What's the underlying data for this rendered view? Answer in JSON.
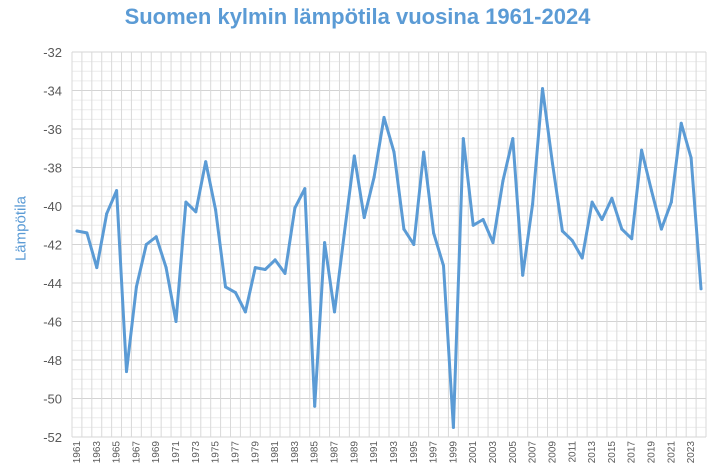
{
  "chart_data": {
    "type": "line",
    "title": "Suomen kylmin lämpötila vuosina 1961-2024",
    "xlabel": "",
    "ylabel": "Lämpötila",
    "ylim": [
      -52,
      -32
    ],
    "yticks": [
      -32,
      -34,
      -36,
      -38,
      -40,
      -42,
      -44,
      -46,
      -48,
      -50,
      -52
    ],
    "grid": true,
    "color": "#5b9bd5",
    "x": [
      1961,
      1962,
      1963,
      1964,
      1965,
      1966,
      1967,
      1968,
      1969,
      1970,
      1971,
      1972,
      1973,
      1974,
      1975,
      1976,
      1977,
      1978,
      1979,
      1980,
      1981,
      1982,
      1983,
      1984,
      1985,
      1986,
      1987,
      1988,
      1989,
      1990,
      1991,
      1992,
      1993,
      1994,
      1995,
      1996,
      1997,
      1998,
      1999,
      2000,
      2001,
      2002,
      2003,
      2004,
      2005,
      2006,
      2007,
      2008,
      2009,
      2010,
      2011,
      2012,
      2013,
      2014,
      2015,
      2016,
      2017,
      2018,
      2019,
      2020,
      2021,
      2022,
      2023,
      2024
    ],
    "values": [
      -41.3,
      -41.4,
      -43.2,
      -40.4,
      -39.2,
      -48.6,
      -44.2,
      -42.0,
      -41.6,
      -43.2,
      -46.0,
      -39.8,
      -40.3,
      -37.7,
      -40.2,
      -44.2,
      -44.5,
      -45.5,
      -43.2,
      -43.3,
      -42.8,
      -43.5,
      -40.1,
      -39.1,
      -50.4,
      -41.9,
      -45.5,
      -41.4,
      -37.4,
      -40.6,
      -38.5,
      -35.4,
      -37.2,
      -41.2,
      -42.0,
      -37.2,
      -41.4,
      -43.1,
      -51.5,
      -36.5,
      -41.0,
      -40.7,
      -41.9,
      -38.7,
      -36.5,
      -43.6,
      -39.9,
      -33.9,
      -37.8,
      -41.3,
      -41.8,
      -42.7,
      -39.8,
      -40.7,
      -39.6,
      -41.2,
      -41.7,
      -37.1,
      -39.2,
      -41.2,
      -39.8,
      -35.7,
      -37.5,
      -44.3
    ]
  }
}
